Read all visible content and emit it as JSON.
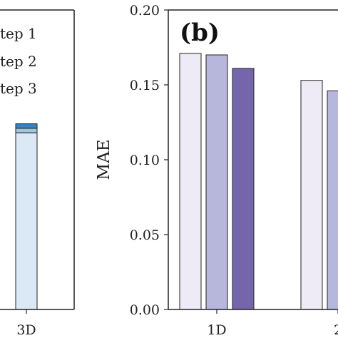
{
  "chart_data": [
    {
      "type": "bar",
      "stacked": true,
      "partially_visible": true,
      "legend": {
        "placement": "top-right",
        "entries": [
          "tep 1",
          "tep 2",
          "tep 3"
        ]
      },
      "categories": [
        "3D"
      ],
      "series": [
        {
          "name": "tep 1",
          "color": "#dbe8f5",
          "values": [
            0.118
          ]
        },
        {
          "name": "tep 2",
          "color": "#9ec6e0",
          "values": [
            0.003
          ]
        },
        {
          "name": "tep 3",
          "color": "#3a83c1",
          "values": [
            0.003
          ]
        }
      ],
      "ylim": [
        0,
        0.2
      ]
    },
    {
      "type": "bar",
      "panel_label": "(b)",
      "ylabel": "MAE",
      "ylim": [
        0,
        0.2
      ],
      "yticks": [
        "0.00",
        "0.05",
        "0.10",
        "0.15",
        "0.20"
      ],
      "categories": [
        "1D",
        "2"
      ],
      "series": [
        {
          "color": "#eeebf6",
          "values": [
            0.171,
            0.153
          ]
        },
        {
          "color": "#b7b6dc",
          "values": [
            0.17,
            0.146
          ]
        },
        {
          "color": "#7566ac",
          "values": [
            0.161,
            null
          ]
        }
      ]
    }
  ]
}
